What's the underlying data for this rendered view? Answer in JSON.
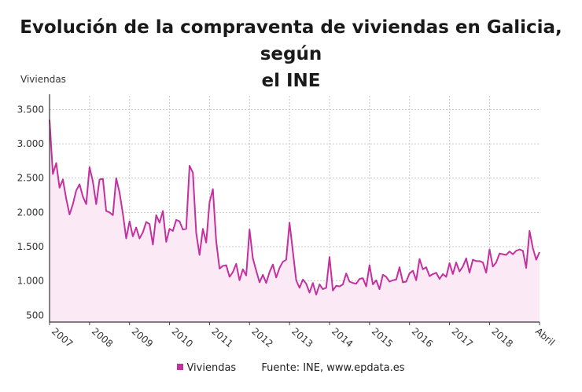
{
  "chart_data": {
    "type": "area",
    "title_line1": "Evolución de la compraventa de viviendas en Galicia, según",
    "title_line2": "el INE",
    "ylabel": "Viviendas",
    "ylim": [
      400,
      3700
    ],
    "yticks": [
      500,
      1000,
      1500,
      2000,
      2500,
      3000,
      3500
    ],
    "ytick_labels": [
      "500",
      "1.000",
      "1.500",
      "2.000",
      "2.500",
      "3.000",
      "3.500"
    ],
    "x_start": "2007-01",
    "x_end": "2019-04",
    "xtick_labels": [
      "2007",
      "2008",
      "2009",
      "2010",
      "2011",
      "2012",
      "2013",
      "2014",
      "2015",
      "2016",
      "2017",
      "2018",
      "Abril"
    ],
    "grid": true,
    "legend_position": "bottom",
    "source": "Fuente: INE, www.epdata.es",
    "series": [
      {
        "name": "Viviendas",
        "color": "#c2319e",
        "fill": "#fbeaf6",
        "values": [
          3350,
          2560,
          2720,
          2360,
          2480,
          2200,
          1970,
          2120,
          2320,
          2410,
          2230,
          2120,
          2660,
          2450,
          2120,
          2480,
          2490,
          2020,
          2000,
          1960,
          2500,
          2290,
          1980,
          1620,
          1870,
          1650,
          1780,
          1620,
          1710,
          1860,
          1830,
          1530,
          1960,
          1850,
          2020,
          1570,
          1760,
          1730,
          1890,
          1870,
          1750,
          1760,
          2680,
          2580,
          1700,
          1380,
          1760,
          1560,
          2150,
          2340,
          1580,
          1180,
          1220,
          1230,
          1060,
          1130,
          1250,
          1010,
          1170,
          1080,
          1750,
          1330,
          1150,
          980,
          1090,
          970,
          1130,
          1240,
          1050,
          1190,
          1280,
          1310,
          1850,
          1430,
          1010,
          900,
          1020,
          960,
          830,
          970,
          800,
          950,
          880,
          900,
          1350,
          860,
          930,
          920,
          950,
          1110,
          990,
          970,
          960,
          1030,
          1040,
          920,
          1230,
          950,
          1010,
          880,
          1090,
          1060,
          990,
          1010,
          1020,
          1200,
          980,
          990,
          1110,
          1150,
          1010,
          1320,
          1170,
          1200,
          1070,
          1100,
          1120,
          1030,
          1100,
          1060,
          1260,
          1100,
          1270,
          1140,
          1210,
          1330,
          1120,
          1310,
          1290,
          1290,
          1270,
          1120,
          1460,
          1210,
          1270,
          1400,
          1390,
          1380,
          1430,
          1390,
          1440,
          1460,
          1440,
          1190,
          1730,
          1480,
          1310,
          1420
        ]
      }
    ]
  }
}
